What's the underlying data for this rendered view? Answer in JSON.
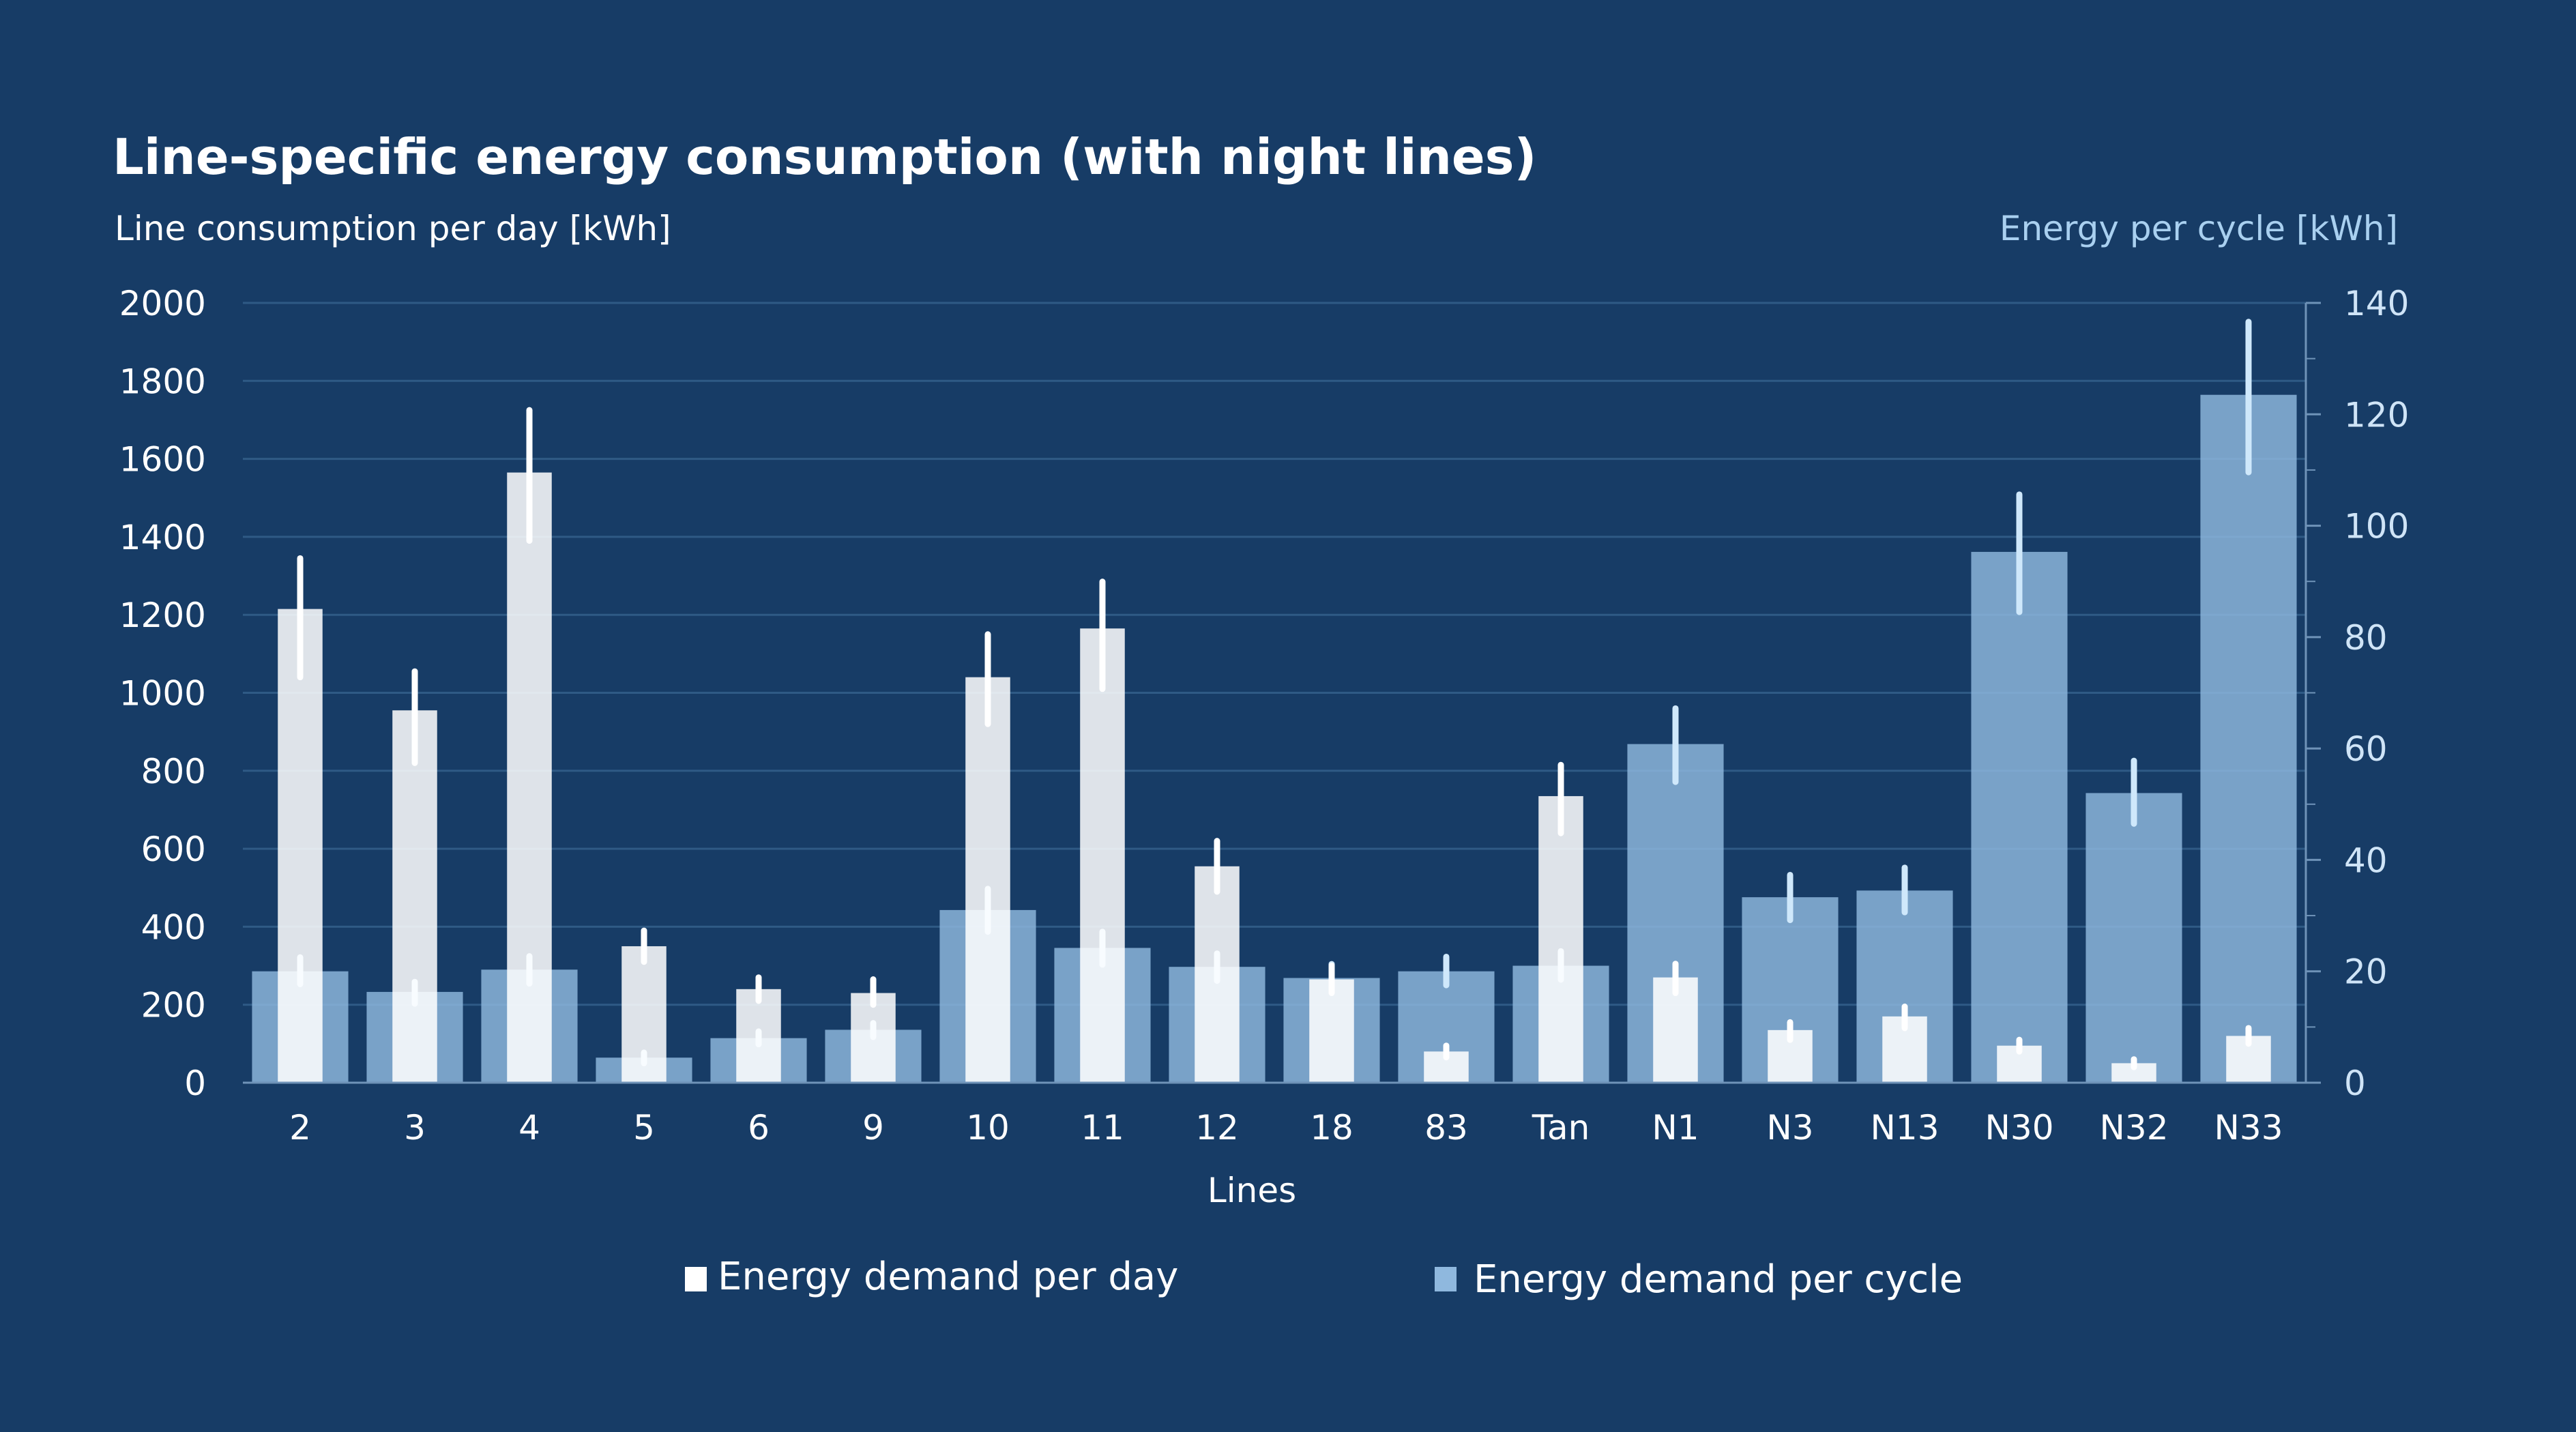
{
  "chart_data": {
    "type": "bar",
    "title": "Line-specific energy consumption (with night lines)",
    "xlabel": "Lines",
    "ylabel_left": "Line consumption per day [kWh]",
    "ylabel_right": "Energy per cycle [kWh]",
    "ylim_left": [
      0,
      2000
    ],
    "ylim_right": [
      0,
      140
    ],
    "yticks_left": [
      "2000",
      "1800",
      "1600",
      "1400",
      "1200",
      "1000",
      "800",
      "600",
      "400",
      "200",
      "0"
    ],
    "yticks_right": [
      "140",
      "120",
      "100",
      "80",
      "60",
      "40",
      "20",
      "0"
    ],
    "grid": true,
    "legend_position": "bottom",
    "categories": [
      "2",
      "3",
      "4",
      "5",
      "6",
      "9",
      "10",
      "11",
      "12",
      "18",
      "83",
      "Tan",
      "N1",
      "N3",
      "N13",
      "N30",
      "N32",
      "N33"
    ],
    "series": [
      {
        "name": "Energy demand per day",
        "axis": "left",
        "color": "#ffffff",
        "values": [
          1215,
          955,
          1565,
          350,
          240,
          230,
          1040,
          1165,
          555,
          265,
          80,
          735,
          270,
          135,
          170,
          95,
          50,
          120
        ],
        "error_low": [
          1040,
          820,
          1390,
          310,
          210,
          200,
          920,
          1010,
          490,
          230,
          65,
          640,
          230,
          110,
          140,
          80,
          40,
          100
        ],
        "error_high": [
          1345,
          1055,
          1725,
          390,
          270,
          265,
          1150,
          1285,
          620,
          300,
          95,
          815,
          305,
          155,
          195,
          110,
          60,
          140
        ]
      },
      {
        "name": "Energy demand per cycle",
        "axis": "right",
        "color": "#8fb8de",
        "values": [
          20,
          16.3,
          20.3,
          4.5,
          8,
          9.5,
          31,
          24.2,
          20.8,
          18.8,
          20,
          21,
          60.8,
          33.3,
          34.5,
          95.3,
          52,
          123.5
        ],
        "error_low": [
          17.7,
          14.2,
          17.8,
          3.5,
          6.9,
          8.2,
          27.1,
          21.2,
          18.3,
          16.4,
          17.5,
          18.5,
          54,
          29.2,
          30.6,
          84.5,
          46.5,
          109.6
        ],
        "error_high": [
          22.5,
          18.1,
          22.7,
          5.4,
          9.2,
          10.7,
          34.8,
          27.1,
          23.2,
          21.3,
          22.6,
          23.6,
          67.2,
          37.3,
          38.6,
          105.6,
          57.8,
          136.6
        ]
      }
    ]
  },
  "colors": {
    "background": "#173c66",
    "gridline": "#2f5a85",
    "cycle_bar": "#8fb8de",
    "cycle_error": "#cfe8fb",
    "day_bar": "#ffffff",
    "right_axis_text": "#a9d0f0"
  }
}
